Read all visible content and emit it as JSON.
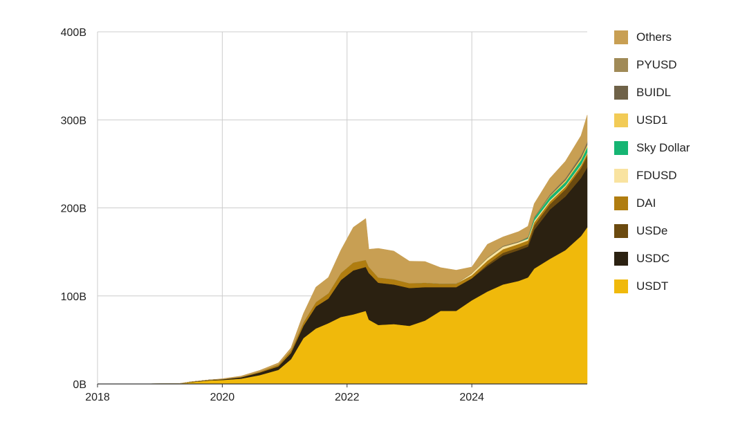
{
  "chart_data": {
    "type": "area",
    "stacked": true,
    "title": "",
    "xlabel": "",
    "ylabel": "",
    "x_unit": "year",
    "xlim": [
      2018,
      2025.85
    ],
    "ylim": [
      0,
      400
    ],
    "x_ticks": [
      2018,
      2020,
      2022,
      2024
    ],
    "x_tick_labels": [
      "2018",
      "2020",
      "2022",
      "2024"
    ],
    "y_ticks": [
      0,
      100,
      200,
      300,
      400
    ],
    "y_tick_labels": [
      "0B",
      "100B",
      "200B",
      "300B",
      "400B"
    ],
    "grid": true,
    "legend_position": "right",
    "x": [
      2018.0,
      2019.3,
      2019.5,
      2019.8,
      2020.0,
      2020.3,
      2020.6,
      2020.9,
      2021.1,
      2021.3,
      2021.5,
      2021.7,
      2021.9,
      2022.1,
      2022.3,
      2022.35,
      2022.5,
      2022.75,
      2023.0,
      2023.25,
      2023.5,
      2023.75,
      2024.0,
      2024.25,
      2024.5,
      2024.75,
      2024.9,
      2025.0,
      2025.25,
      2025.5,
      2025.75,
      2025.85
    ],
    "series": [
      {
        "name": "USDT",
        "color": "#F0B90B",
        "values": [
          0,
          0.3,
          2,
          4,
          4.5,
          6,
          10,
          16,
          28,
          52,
          63,
          69,
          76,
          79,
          83,
          73,
          67,
          68,
          66,
          72,
          83,
          83,
          95,
          105,
          113,
          117,
          121,
          131,
          142,
          152,
          168,
          178
        ]
      },
      {
        "name": "USDC",
        "color": "#2B2111",
        "values": [
          0,
          0,
          0.4,
          0.6,
          0.8,
          1.5,
          3,
          4,
          7,
          14,
          25,
          28,
          42,
          50,
          50,
          53,
          48,
          45,
          43,
          38,
          27,
          27,
          25,
          29,
          33,
          35,
          35,
          44,
          56,
          61,
          66,
          68
        ]
      },
      {
        "name": "USDe",
        "color": "#6B4A0F",
        "values": [
          0,
          0,
          0,
          0,
          0,
          0,
          0,
          0,
          0,
          0,
          0,
          0,
          0,
          0,
          0,
          0,
          0,
          0,
          0,
          0,
          0,
          0,
          0,
          2,
          3,
          3,
          3,
          5,
          6,
          8,
          11,
          13
        ]
      },
      {
        "name": "DAI",
        "color": "#B07D10",
        "values": [
          0,
          0,
          0.1,
          0.1,
          0.2,
          0.5,
          1,
          2,
          3,
          4,
          5,
          6,
          8,
          9,
          8,
          7,
          6,
          6,
          5.5,
          5,
          4,
          4,
          3.5,
          4,
          4,
          4,
          4,
          3.5,
          3,
          3,
          3,
          3
        ]
      },
      {
        "name": "FDUSD",
        "color": "#F9E3A0",
        "values": [
          0,
          0,
          0,
          0,
          0,
          0,
          0,
          0,
          0,
          0,
          0,
          0,
          0,
          0,
          0,
          0,
          0,
          0,
          0,
          0,
          0,
          0,
          2,
          3,
          3,
          2,
          2,
          2,
          1.5,
          1.3,
          1.1,
          1
        ]
      },
      {
        "name": "Sky Dollar",
        "color": "#16B573",
        "values": [
          0,
          0,
          0,
          0,
          0,
          0,
          0,
          0,
          0,
          0,
          0,
          0,
          0,
          0,
          0,
          0,
          0,
          0,
          0,
          0,
          0,
          0,
          0,
          0,
          0,
          0,
          1,
          3,
          4,
          4,
          5,
          6
        ]
      },
      {
        "name": "USD1",
        "color": "#F2CB56",
        "values": [
          0,
          0,
          0,
          0,
          0,
          0,
          0,
          0,
          0,
          0,
          0,
          0,
          0,
          0,
          0,
          0,
          0,
          0,
          0,
          0,
          0,
          0,
          0,
          0,
          0,
          0,
          0,
          0,
          1,
          2,
          2.5,
          2.7
        ]
      },
      {
        "name": "BUIDL",
        "color": "#6F6248",
        "values": [
          0,
          0,
          0,
          0,
          0,
          0,
          0,
          0,
          0,
          0,
          0,
          0,
          0,
          0,
          0,
          0,
          0,
          0,
          0,
          0,
          0,
          0,
          0,
          0.2,
          0.4,
          0.5,
          0.6,
          0.6,
          1,
          1.5,
          2,
          2.3
        ]
      },
      {
        "name": "PYUSD",
        "color": "#A08A57",
        "values": [
          0,
          0,
          0,
          0,
          0,
          0,
          0,
          0,
          0,
          0,
          0,
          0,
          0,
          0,
          0,
          0,
          0,
          0,
          0,
          0.1,
          0.2,
          0.3,
          0.4,
          0.5,
          0.7,
          0.6,
          0.6,
          0.7,
          1,
          1.2,
          1.5,
          1.5
        ]
      },
      {
        "name": "Others",
        "color": "#C89F53",
        "values": [
          0,
          0,
          0,
          0,
          0.5,
          1,
          1.5,
          2,
          3,
          10,
          17,
          18,
          26,
          40,
          47,
          20,
          33,
          32,
          25,
          24,
          18,
          15,
          7,
          15,
          10,
          11,
          12,
          15,
          18,
          19,
          22,
          30
        ]
      }
    ]
  }
}
